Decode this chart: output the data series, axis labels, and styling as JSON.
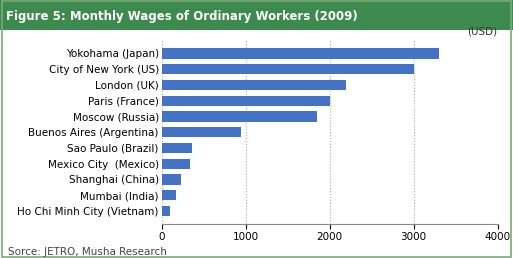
{
  "title": "Figure 5: Monthly Wages of Ordinary Workers (2009)",
  "categories": [
    "Ho Chi Minh City (Vietnam)",
    "Mumbai (India)",
    "Shanghai (China)",
    "Mexico City  (Mexico)",
    "Sao Paulo (Brazil)",
    "Buenos Aires (Argentina)",
    "Moscow (Russia)",
    "Paris (France)",
    "London (UK)",
    "City of New York (US)",
    "Yokohama (Japan)"
  ],
  "values": [
    100,
    170,
    230,
    340,
    360,
    950,
    1850,
    2000,
    2200,
    3000,
    3300
  ],
  "bar_color": "#4472C4",
  "xlim": [
    0,
    4000
  ],
  "xticks": [
    0,
    1000,
    2000,
    3000,
    4000
  ],
  "xlabel_unit": "(USD)",
  "source": "Sorce: JETRO, Musha Research",
  "title_bg_color": "#3d8a4e",
  "title_text_color": "#ffffff",
  "title_fontsize": 8.5,
  "label_fontsize": 7.5,
  "tick_fontsize": 7.5,
  "source_fontsize": 7.5,
  "border_color": "#5a8a5a"
}
